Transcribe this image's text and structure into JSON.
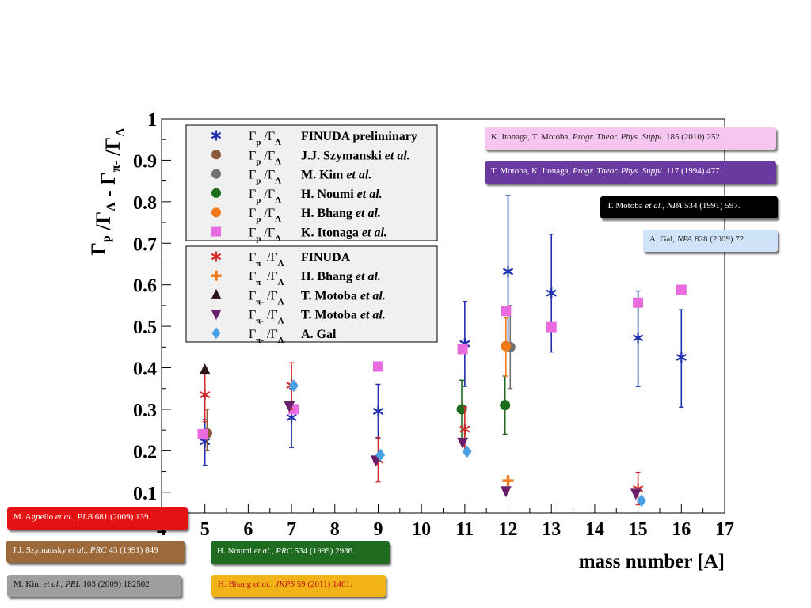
{
  "chart_data": {
    "type": "scatter",
    "xlabel": "mass number [A]",
    "ylabel": "Γp/ΓΛ - Γπ-/ΓΛ",
    "xlim": [
      4,
      17
    ],
    "ylim": [
      0.05,
      1.0
    ],
    "x_ticks": [
      4,
      5,
      6,
      7,
      8,
      9,
      10,
      11,
      12,
      13,
      14,
      15,
      16,
      17
    ],
    "y_ticks": [
      0.1,
      0.2,
      0.3,
      0.4,
      0.5,
      0.6,
      0.7,
      0.8,
      0.9,
      1
    ],
    "legend_placement": "top-left",
    "legend_groups": [
      [
        {
          "ratio": "Γp /ΓΛ",
          "author": "FINUDA preliminary",
          "series": 0
        },
        {
          "ratio": "Γp /ΓΛ",
          "author": "J.J. Szymanski",
          "etal": "et al.",
          "series": 1
        },
        {
          "ratio": "Γp /ΓΛ",
          "author": "M. Kim",
          "etal": "et al.",
          "series": 2
        },
        {
          "ratio": "Γp /ΓΛ",
          "author": "H. Noumi",
          "etal": "et al.",
          "series": 3
        },
        {
          "ratio": "Γp /ΓΛ",
          "author": "H. Bhang",
          "etal": "et al.",
          "series": 4
        },
        {
          "ratio": "Γp /ΓΛ",
          "author": "K. Itonaga",
          "etal": "et al.",
          "series": 5
        }
      ],
      [
        {
          "ratio": "Γπ- /ΓΛ",
          "author": "FINUDA",
          "series": 6
        },
        {
          "ratio": "Γπ- /ΓΛ",
          "author": "H. Bhang",
          "etal": "et al.",
          "series": 7
        },
        {
          "ratio": "Γπ- /ΓΛ",
          "author": "T. Motoba",
          "etal": "et al.",
          "series": 8
        },
        {
          "ratio": "Γπ- /ΓΛ",
          "author": "T. Motoba",
          "etal": "et al.",
          "series": 9
        },
        {
          "ratio": "Γπ- /ΓΛ",
          "author": "A. Gal",
          "series": 10
        }
      ]
    ],
    "series": [
      {
        "marker": "asterisk",
        "color": "#1f2fb0",
        "points": [
          {
            "x": 5,
            "y": 0.222,
            "lo": 0.165,
            "hi": 0.275
          },
          {
            "x": 7,
            "y": 0.28,
            "lo": 0.208,
            "hi": 0.35
          },
          {
            "x": 9,
            "y": 0.295,
            "lo": 0.23,
            "hi": 0.36
          },
          {
            "x": 11,
            "y": 0.458,
            "lo": 0.355,
            "hi": 0.56
          },
          {
            "x": 12,
            "y": 0.632,
            "lo": 0.445,
            "hi": 0.815
          },
          {
            "x": 13,
            "y": 0.58,
            "lo": 0.438,
            "hi": 0.722
          },
          {
            "x": 15,
            "y": 0.472,
            "lo": 0.355,
            "hi": 0.585
          },
          {
            "x": 16,
            "y": 0.425,
            "lo": 0.305,
            "hi": 0.54
          }
        ]
      },
      {
        "marker": "circle",
        "color": "#8b5a3c",
        "points": [
          {
            "x": 5.05,
            "y": 0.242,
            "lo": 0.2,
            "hi": 0.3
          }
        ]
      },
      {
        "marker": "circle",
        "color": "#707070",
        "points": [
          {
            "x": 12.05,
            "y": 0.45,
            "lo": 0.35,
            "hi": 0.55
          }
        ]
      },
      {
        "marker": "circle",
        "color": "#1d6b1d",
        "points": [
          {
            "x": 10.93,
            "y": 0.3,
            "lo": 0.225,
            "hi": 0.37
          },
          {
            "x": 11.93,
            "y": 0.31,
            "lo": 0.24,
            "hi": 0.38
          }
        ]
      },
      {
        "marker": "circle",
        "color": "#f07a1a",
        "points": [
          {
            "x": 11.95,
            "y": 0.452,
            "lo": 0.38,
            "hi": 0.52
          }
        ]
      },
      {
        "marker": "square",
        "color": "#e86ce0",
        "points": [
          {
            "x": 4.95,
            "y": 0.24
          },
          {
            "x": 7.05,
            "y": 0.3
          },
          {
            "x": 9,
            "y": 0.403
          },
          {
            "x": 10.95,
            "y": 0.445
          },
          {
            "x": 11.95,
            "y": 0.537
          },
          {
            "x": 13,
            "y": 0.498
          },
          {
            "x": 15,
            "y": 0.557
          },
          {
            "x": 16,
            "y": 0.588
          }
        ]
      },
      {
        "marker": "asterisk",
        "color": "#d42a2a",
        "points": [
          {
            "x": 5,
            "y": 0.335,
            "lo": 0.27,
            "hi": 0.4
          },
          {
            "x": 7,
            "y": 0.358,
            "lo": 0.3,
            "hi": 0.412
          },
          {
            "x": 9,
            "y": 0.178,
            "lo": 0.125,
            "hi": 0.232
          },
          {
            "x": 11,
            "y": 0.252,
            "lo": 0.2,
            "hi": 0.305
          },
          {
            "x": 15,
            "y": 0.108,
            "lo": 0.07,
            "hi": 0.148
          }
        ]
      },
      {
        "marker": "cross",
        "color": "#f07a1a",
        "points": [
          {
            "x": 12,
            "y": 0.128
          }
        ]
      },
      {
        "marker": "triangle-up",
        "color": "#2a1414",
        "points": [
          {
            "x": 5,
            "y": 0.395
          }
        ]
      },
      {
        "marker": "triangle-down",
        "color": "#6a1f6a",
        "points": [
          {
            "x": 6.95,
            "y": 0.308
          },
          {
            "x": 8.95,
            "y": 0.177
          },
          {
            "x": 10.95,
            "y": 0.22
          },
          {
            "x": 11.95,
            "y": 0.103
          },
          {
            "x": 14.95,
            "y": 0.097
          }
        ]
      },
      {
        "marker": "diamond",
        "color": "#4aa0e6",
        "points": [
          {
            "x": 7.05,
            "y": 0.357
          },
          {
            "x": 9.05,
            "y": 0.19
          },
          {
            "x": 11.05,
            "y": 0.198
          },
          {
            "x": 15.08,
            "y": 0.08
          }
        ]
      }
    ]
  },
  "references": {
    "itonaga": {
      "authors": "K. Itonaga, T. Motoba, ",
      "journal": "Progr. Theor. Phys. Suppl.",
      "rest": " 185 (2010) 252.",
      "bg": "#f6c6f0",
      "fg": "#222222"
    },
    "motoba_ptps": {
      "authors": "T. Motoba, K. Itonaga, ",
      "journal": "Progr. Theor. Phys. Suppl.",
      "rest": " 117 (1994) 477.",
      "bg": "#6a3aa0",
      "fg": "#ffffff"
    },
    "motoba_npa": {
      "authors": "T. Motoba ",
      "etal": "et al.",
      "sep": ", ",
      "journal": "NPA",
      "rest": " 534 (1991) 597.",
      "bg": "#000000",
      "fg": "#ffffff"
    },
    "gal": {
      "authors": "A. Gal, ",
      "journal": "NPA",
      "rest": " 828 (2009) 72.",
      "bg": "#cfe4f8",
      "fg": "#222222"
    },
    "agnello": {
      "authors": "M. Agnello ",
      "etal": "et al.",
      "sep": ", ",
      "journal": "PLB",
      "rest": " 681 (2009) 139.",
      "bg": "#e41212",
      "fg": "#ffffff"
    },
    "szymansky": {
      "authors": "J.J. Szymansky ",
      "etal": "et al.",
      "sep": ", ",
      "journal": "PRC",
      "rest": " 43 (1991) 849",
      "bg": "#9c6a3a",
      "fg": "#ffffff"
    },
    "kim": {
      "authors": "M. Kim ",
      "etal": "et al.",
      "sep": ", ",
      "journal": "PRL",
      "rest": " 103 (2009) 182502",
      "bg": "#9e9e9e",
      "fg": "#111111"
    },
    "noumi": {
      "authors": "H. Noumi ",
      "etal": "et al.",
      "sep": ", ",
      "journal": "PRC",
      "rest": " 534 (1995) 2936.",
      "bg": "#1f6b1f",
      "fg": "#ffffff"
    },
    "bhang": {
      "authors": "H. Bhang ",
      "etal": "et al.",
      "sep": ", ",
      "journal": "JKPS",
      "rest": " 59 (2011) 1461.",
      "bg": "#f2b318",
      "fg": "#c01010"
    }
  }
}
